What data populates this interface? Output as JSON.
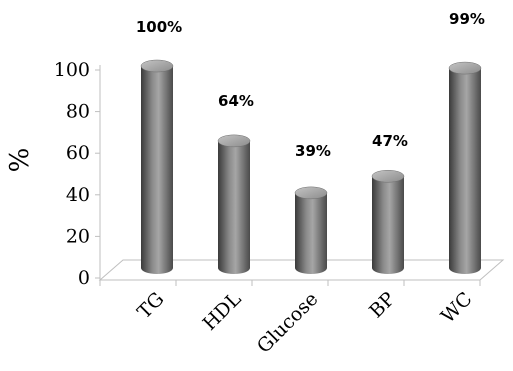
{
  "chart_data": {
    "type": "bar",
    "categories": [
      "TG",
      "HDL",
      "Glucose",
      "BP",
      "WC"
    ],
    "values": [
      100,
      64,
      39,
      47,
      99
    ],
    "data_labels": [
      "100%",
      "64%",
      "39%",
      "47%",
      "99%"
    ],
    "title": "",
    "xlabel": "",
    "ylabel": "%",
    "ylim": [
      0,
      100
    ],
    "yticks": [
      0,
      20,
      40,
      60,
      80,
      100
    ],
    "grid": false,
    "legend": "none",
    "style": "3d-cylinder",
    "colors": {
      "bar": "#7f7f7f",
      "bar_dark": "#3a3a3a",
      "bar_light": "#b5b5b5",
      "floor": "#d9d9d9"
    }
  }
}
